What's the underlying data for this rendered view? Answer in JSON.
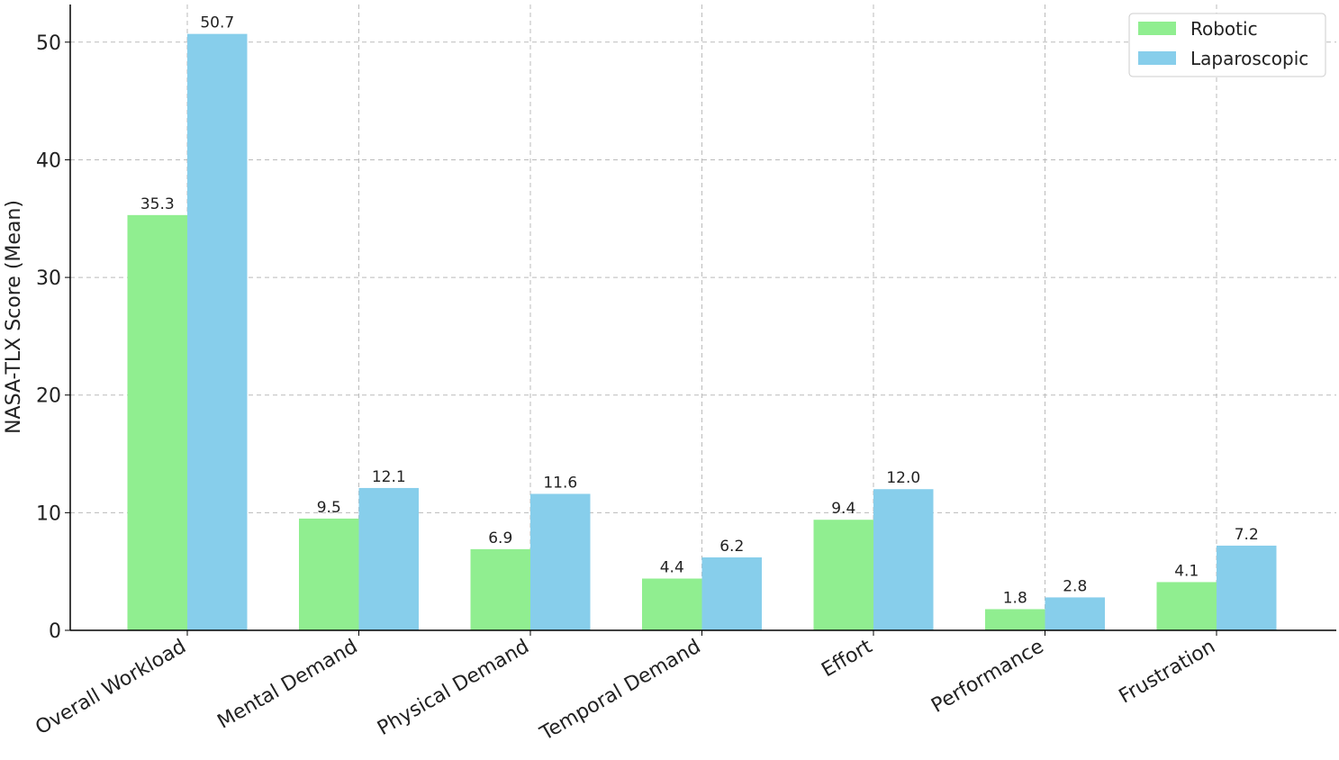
{
  "chart_data": {
    "type": "bar",
    "y_label": "NASA-TLX Score (Mean)",
    "categories": [
      "Overall Workload",
      "Mental Demand",
      "Physical Demand",
      "Temporal Demand",
      "Effort",
      "Performance",
      "Frustration"
    ],
    "series": [
      {
        "name": "Robotic",
        "color": "#90ee90",
        "values": [
          35.3,
          9.5,
          6.9,
          4.4,
          9.4,
          1.8,
          4.1
        ],
        "value_labels": [
          "35.3",
          "9.5",
          "6.9",
          "4.4",
          "9.4",
          "1.8",
          "4.1"
        ]
      },
      {
        "name": "Laparoscopic",
        "color": "#87ceeb",
        "values": [
          50.7,
          12.1,
          11.6,
          6.2,
          12.0,
          2.8,
          7.2
        ],
        "value_labels": [
          "50.7",
          "12.1",
          "11.6",
          "6.2",
          "12.0",
          "2.8",
          "7.2"
        ]
      }
    ],
    "ylim": [
      0,
      53.2
    ],
    "yticks": [
      0,
      10,
      20,
      30,
      40,
      50
    ],
    "grid": true,
    "legend": "upper right"
  }
}
